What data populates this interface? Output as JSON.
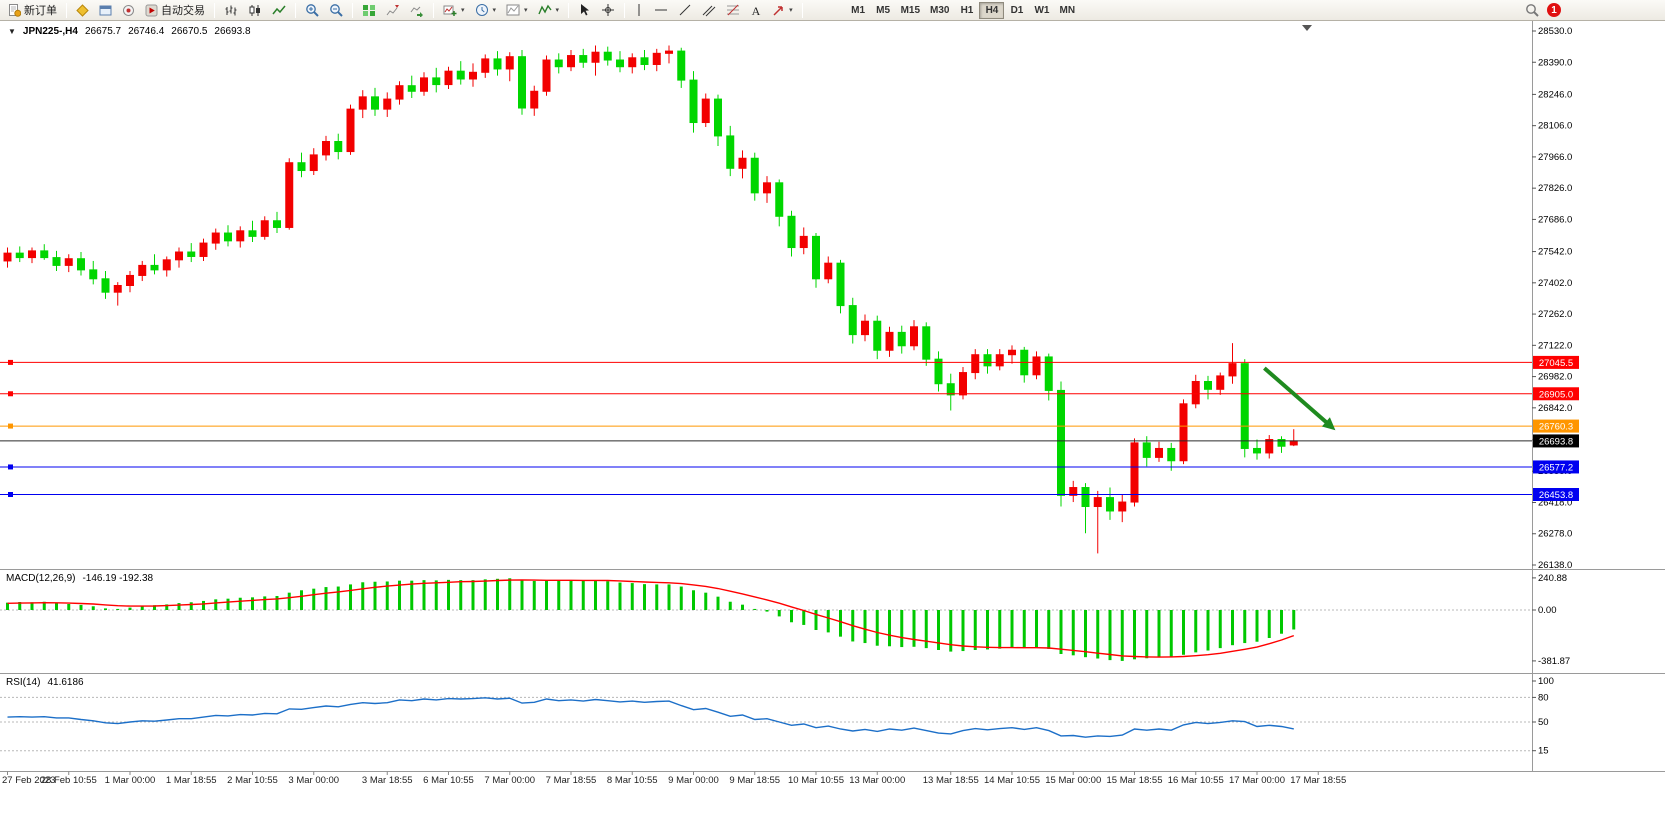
{
  "toolbar": {
    "new_order": "新订单",
    "auto_trading": "自动交易",
    "timeframes": [
      "M1",
      "M5",
      "M15",
      "M30",
      "H1",
      "H4",
      "D1",
      "W1",
      "MN"
    ],
    "active_timeframe": "H4",
    "badge": "1"
  },
  "symbol_line": {
    "symbol": "JPN225-,H4",
    "open": "26675.7",
    "high": "26746.4",
    "low": "26670.5",
    "close": "26693.8"
  },
  "price_axis": {
    "labels": [
      "28530.0",
      "28390.0",
      "28246.0",
      "28106.0",
      "27966.0",
      "27826.0",
      "27686.0",
      "27542.0",
      "27402.0",
      "27262.0",
      "27122.0",
      "26982.0",
      "26842.0",
      "26698.0",
      "26558.0",
      "26418.0",
      "26278.0",
      "26138.0"
    ]
  },
  "time_axis": {
    "labels": [
      {
        "text": "27 Feb 2023",
        "ci": 0
      },
      {
        "text": "28 Feb 10:55",
        "ci": 5
      },
      {
        "text": "1 Mar 00:00",
        "ci": 10
      },
      {
        "text": "1 Mar 18:55",
        "ci": 15
      },
      {
        "text": "2 Mar 10:55",
        "ci": 20
      },
      {
        "text": "3 Mar 00:00",
        "ci": 25
      },
      {
        "text": "3 Mar 18:55",
        "ci": 31
      },
      {
        "text": "6 Mar 10:55",
        "ci": 36
      },
      {
        "text": "7 Mar 00:00",
        "ci": 41
      },
      {
        "text": "7 Mar 18:55",
        "ci": 46
      },
      {
        "text": "8 Mar 10:55",
        "ci": 51
      },
      {
        "text": "9 Mar 00:00",
        "ci": 56
      },
      {
        "text": "9 Mar 18:55",
        "ci": 61
      },
      {
        "text": "10 Mar 10:55",
        "ci": 66
      },
      {
        "text": "13 Mar 00:00",
        "ci": 71
      },
      {
        "text": "13 Mar 18:55",
        "ci": 77
      },
      {
        "text": "14 Mar 10:55",
        "ci": 82
      },
      {
        "text": "15 Mar 00:00",
        "ci": 87
      },
      {
        "text": "15 Mar 18:55",
        "ci": 92
      },
      {
        "text": "16 Mar 10:55",
        "ci": 97
      },
      {
        "text": "17 Mar 00:00",
        "ci": 102
      },
      {
        "text": "17 Mar 18:55",
        "ci": 107
      }
    ]
  },
  "hlines": [
    {
      "price": 27045.5,
      "label": "27045.5",
      "color": "#ff0000"
    },
    {
      "price": 26905.0,
      "label": "26905.0",
      "color": "#ff0000"
    },
    {
      "price": 26760.3,
      "label": "26760.3",
      "color": "#ff9600"
    },
    {
      "price": 26577.2,
      "label": "26577.2",
      "color": "#0000f0"
    },
    {
      "price": 26453.8,
      "label": "26453.8",
      "color": "#0000f0"
    }
  ],
  "current_price": {
    "price": 26693.8,
    "label": "26693.8",
    "line_color": "#2a2a2a",
    "box_color": "#000000"
  },
  "arrow": {
    "from": {
      "ci": 102.6,
      "price": 27020
    },
    "to": {
      "ci": 108.4,
      "price": 26742
    },
    "color": "#1f8a1f"
  },
  "indicators": {
    "macd": {
      "label": "MACD(12,26,9)",
      "values": "-146.19 -192.38",
      "axis": [
        "240.88",
        "0.00",
        "-381.87"
      ],
      "hist_color": "#00c800",
      "signal_color": "#ff0000"
    },
    "rsi": {
      "label": "RSI(14)",
      "value": "41.6186",
      "axis": [
        "100",
        "80",
        "50",
        "15"
      ],
      "levels": [
        80,
        50,
        15
      ],
      "color": "#1c6fc8"
    }
  },
  "chart_data": {
    "type": "candlestick",
    "symbol": "JPN225-",
    "timeframe": "H4",
    "up_color": "#f20000",
    "down_color": "#00d600",
    "price_range": [
      26138,
      28530
    ],
    "candles": [
      [
        27500,
        27560,
        27470,
        27535
      ],
      [
        27535,
        27565,
        27495,
        27515
      ],
      [
        27515,
        27560,
        27490,
        27545
      ],
      [
        27545,
        27575,
        27505,
        27515
      ],
      [
        27515,
        27545,
        27455,
        27480
      ],
      [
        27480,
        27530,
        27450,
        27510
      ],
      [
        27510,
        27540,
        27435,
        27460
      ],
      [
        27460,
        27500,
        27395,
        27420
      ],
      [
        27420,
        27455,
        27330,
        27360
      ],
      [
        27360,
        27405,
        27300,
        27390
      ],
      [
        27390,
        27455,
        27360,
        27435
      ],
      [
        27435,
        27500,
        27410,
        27480
      ],
      [
        27480,
        27530,
        27440,
        27460
      ],
      [
        27460,
        27520,
        27430,
        27505
      ],
      [
        27505,
        27560,
        27470,
        27540
      ],
      [
        27540,
        27580,
        27495,
        27520
      ],
      [
        27520,
        27600,
        27500,
        27580
      ],
      [
        27580,
        27645,
        27550,
        27625
      ],
      [
        27625,
        27660,
        27565,
        27590
      ],
      [
        27590,
        27655,
        27560,
        27635
      ],
      [
        27635,
        27680,
        27585,
        27610
      ],
      [
        27610,
        27700,
        27595,
        27680
      ],
      [
        27680,
        27720,
        27625,
        27650
      ],
      [
        27650,
        27960,
        27640,
        27940
      ],
      [
        27940,
        27985,
        27875,
        27905
      ],
      [
        27905,
        28005,
        27885,
        27975
      ],
      [
        27975,
        28060,
        27950,
        28035
      ],
      [
        28035,
        28070,
        27955,
        27990
      ],
      [
        27990,
        28200,
        27975,
        28180
      ],
      [
        28180,
        28265,
        28140,
        28235
      ],
      [
        28235,
        28275,
        28150,
        28180
      ],
      [
        28180,
        28255,
        28145,
        28225
      ],
      [
        28225,
        28305,
        28200,
        28285
      ],
      [
        28285,
        28330,
        28230,
        28260
      ],
      [
        28260,
        28345,
        28240,
        28320
      ],
      [
        28320,
        28365,
        28255,
        28290
      ],
      [
        28290,
        28370,
        28270,
        28350
      ],
      [
        28350,
        28395,
        28290,
        28315
      ],
      [
        28315,
        28385,
        28280,
        28345
      ],
      [
        28345,
        28425,
        28320,
        28405
      ],
      [
        28405,
        28440,
        28330,
        28360
      ],
      [
        28360,
        28435,
        28305,
        28415
      ],
      [
        28415,
        28445,
        28155,
        28185
      ],
      [
        28185,
        28285,
        28150,
        28260
      ],
      [
        28260,
        28420,
        28240,
        28400
      ],
      [
        28400,
        28430,
        28340,
        28370
      ],
      [
        28370,
        28445,
        28350,
        28420
      ],
      [
        28420,
        28450,
        28365,
        28390
      ],
      [
        28390,
        28465,
        28330,
        28435
      ],
      [
        28435,
        28460,
        28375,
        28400
      ],
      [
        28400,
        28440,
        28345,
        28370
      ],
      [
        28370,
        28430,
        28340,
        28410
      ],
      [
        28410,
        28445,
        28355,
        28380
      ],
      [
        28380,
        28450,
        28350,
        28430
      ],
      [
        28430,
        28465,
        28385,
        28440
      ],
      [
        28440,
        28455,
        28275,
        28310
      ],
      [
        28310,
        28350,
        28075,
        28120
      ],
      [
        28120,
        28250,
        28100,
        28225
      ],
      [
        28225,
        28245,
        28015,
        28060
      ],
      [
        28060,
        28105,
        27880,
        27915
      ],
      [
        27915,
        27995,
        27870,
        27960
      ],
      [
        27960,
        27985,
        27770,
        27805
      ],
      [
        27805,
        27880,
        27760,
        27850
      ],
      [
        27850,
        27865,
        27655,
        27700
      ],
      [
        27700,
        27725,
        27520,
        27560
      ],
      [
        27560,
        27650,
        27530,
        27610
      ],
      [
        27610,
        27625,
        27380,
        27420
      ],
      [
        27420,
        27520,
        27400,
        27490
      ],
      [
        27490,
        27505,
        27265,
        27300
      ],
      [
        27300,
        27335,
        27130,
        27170
      ],
      [
        27170,
        27260,
        27140,
        27230
      ],
      [
        27230,
        27255,
        27060,
        27100
      ],
      [
        27100,
        27205,
        27070,
        27180
      ],
      [
        27180,
        27210,
        27085,
        27120
      ],
      [
        27120,
        27235,
        27100,
        27205
      ],
      [
        27205,
        27225,
        27030,
        27060
      ],
      [
        27060,
        27095,
        26915,
        26950
      ],
      [
        26950,
        26995,
        26830,
        26900
      ],
      [
        26900,
        27025,
        26880,
        27000
      ],
      [
        27000,
        27105,
        26970,
        27080
      ],
      [
        27080,
        27105,
        26995,
        27030
      ],
      [
        27030,
        27105,
        27010,
        27080
      ],
      [
        27080,
        27122,
        27040,
        27100
      ],
      [
        27100,
        27115,
        26955,
        26990
      ],
      [
        26990,
        27095,
        26970,
        27070
      ],
      [
        27070,
        27085,
        26875,
        26920
      ],
      [
        26920,
        26960,
        26400,
        26450
      ],
      [
        26450,
        26515,
        26420,
        26485
      ],
      [
        26485,
        26505,
        26280,
        26400
      ],
      [
        26400,
        26470,
        26190,
        26440
      ],
      [
        26440,
        26485,
        26340,
        26380
      ],
      [
        26380,
        26455,
        26330,
        26420
      ],
      [
        26420,
        26705,
        26400,
        26685
      ],
      [
        26685,
        26715,
        26580,
        26620
      ],
      [
        26620,
        26690,
        26600,
        26660
      ],
      [
        26660,
        26685,
        26560,
        26605
      ],
      [
        26605,
        26880,
        26590,
        26860
      ],
      [
        26860,
        26990,
        26840,
        26960
      ],
      [
        26960,
        26985,
        26880,
        26925
      ],
      [
        26925,
        27000,
        26900,
        26985
      ],
      [
        26985,
        27132,
        26950,
        27040
      ],
      [
        27040,
        27060,
        26620,
        26660
      ],
      [
        26660,
        26700,
        26610,
        26640
      ],
      [
        26640,
        26720,
        26615,
        26700
      ],
      [
        26700,
        26715,
        26640,
        26670
      ],
      [
        26675.7,
        26746.4,
        26670.5,
        26693.8
      ]
    ],
    "macd_histogram": [
      55,
      60,
      58,
      62,
      50,
      45,
      38,
      28,
      12,
      8,
      18,
      30,
      36,
      42,
      52,
      58,
      68,
      80,
      85,
      92,
      95,
      102,
      105,
      130,
      148,
      160,
      172,
      176,
      192,
      208,
      212,
      214,
      220,
      220,
      224,
      222,
      226,
      224,
      224,
      230,
      234,
      238,
      228,
      218,
      222,
      220,
      222,
      218,
      222,
      216,
      206,
      202,
      194,
      192,
      192,
      176,
      148,
      130,
      100,
      62,
      40,
      8,
      -12,
      -48,
      -92,
      -112,
      -150,
      -168,
      -200,
      -236,
      -248,
      -268,
      -272,
      -278,
      -276,
      -286,
      -300,
      -312,
      -308,
      -300,
      -296,
      -290,
      -284,
      -286,
      -282,
      -292,
      -330,
      -340,
      -354,
      -364,
      -376,
      -382,
      -370,
      -362,
      -356,
      -350,
      -336,
      -318,
      -304,
      -286,
      -264,
      -248,
      -238,
      -210,
      -178,
      -146.19
    ],
    "macd_signal": [
      50,
      52,
      53,
      55,
      54,
      52,
      49,
      45,
      38,
      32,
      29,
      29,
      30,
      33,
      37,
      41,
      46,
      53,
      59,
      66,
      72,
      78,
      83,
      92,
      103,
      115,
      126,
      136,
      147,
      159,
      170,
      179,
      187,
      194,
      200,
      204,
      208,
      212,
      214,
      217,
      221,
      224,
      225,
      224,
      223,
      223,
      223,
      222,
      222,
      221,
      218,
      214,
      210,
      207,
      204,
      198,
      188,
      177,
      161,
      141,
      121,
      98,
      76,
      51,
      23,
      -4,
      -33,
      -60,
      -88,
      -118,
      -144,
      -169,
      -189,
      -207,
      -221,
      -234,
      -247,
      -260,
      -270,
      -276,
      -280,
      -282,
      -282,
      -283,
      -283,
      -285,
      -294,
      -303,
      -313,
      -324,
      -334,
      -344,
      -349,
      -352,
      -353,
      -352,
      -349,
      -343,
      -335,
      -325,
      -310,
      -295,
      -278,
      -253,
      -225,
      -192.38
    ],
    "rsi_values": [
      56,
      56.5,
      56,
      56.5,
      55,
      55,
      53,
      51.5,
      49,
      48,
      50,
      51.5,
      51,
      52.5,
      54,
      54,
      56,
      58,
      57.5,
      59,
      58.5,
      60.5,
      60,
      66,
      65.5,
      67.5,
      69.5,
      68.5,
      71.5,
      73.5,
      72.5,
      73.5,
      77,
      76,
      78,
      77,
      78.5,
      78,
      78.5,
      79.5,
      78,
      79,
      73,
      74,
      78,
      76,
      77,
      75.5,
      77.5,
      76,
      74.5,
      75.5,
      74,
      75,
      75.5,
      70,
      65,
      66.5,
      62,
      57,
      58.5,
      53,
      54,
      50,
      46,
      47.5,
      43,
      45,
      41.5,
      39,
      41,
      38.5,
      41.5,
      40,
      42.5,
      39.5,
      36.5,
      35.5,
      39.5,
      42,
      40.5,
      42,
      43,
      41,
      43,
      39.5,
      33,
      33.5,
      31.5,
      33,
      32.5,
      34,
      41.5,
      40,
      41.5,
      40,
      46.5,
      49.5,
      48,
      49.5,
      51.5,
      50.5,
      44.5,
      46,
      44.5,
      41.62
    ]
  }
}
